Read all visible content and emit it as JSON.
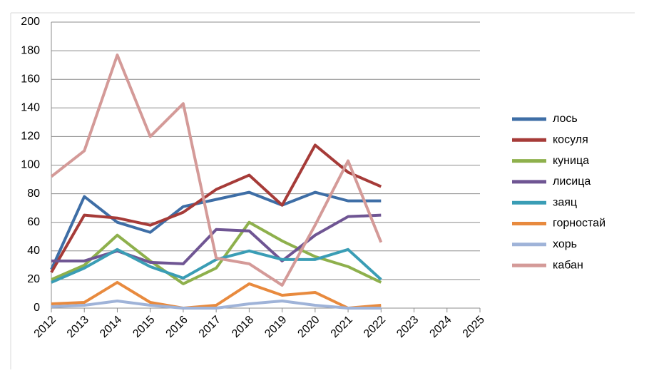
{
  "chart_data": {
    "type": "line",
    "categories": [
      "2012",
      "2013",
      "2014",
      "2015",
      "2016",
      "2017",
      "2018",
      "2019",
      "2020",
      "2021",
      "2022",
      "2023",
      "2024",
      "2025"
    ],
    "series": [
      {
        "name": "лось",
        "color": "#3e6ea6",
        "values": [
          27,
          78,
          60,
          53,
          71,
          76,
          81,
          72,
          81,
          75,
          75,
          null,
          null,
          null
        ]
      },
      {
        "name": "косуля",
        "color": "#a63b38",
        "values": [
          25,
          65,
          63,
          58,
          67,
          83,
          93,
          72,
          114,
          95,
          85,
          null,
          null,
          null
        ]
      },
      {
        "name": "куница",
        "color": "#8eb04c",
        "values": [
          20,
          30,
          51,
          33,
          17,
          28,
          60,
          47,
          36,
          29,
          18,
          null,
          null,
          null
        ]
      },
      {
        "name": "лисица",
        "color": "#6f5593",
        "values": [
          33,
          33,
          40,
          32,
          31,
          55,
          54,
          33,
          51,
          64,
          65,
          null,
          null,
          null
        ]
      },
      {
        "name": "заяц",
        "color": "#3a9db5",
        "values": [
          18,
          28,
          41,
          29,
          21,
          34,
          40,
          34,
          34,
          41,
          20,
          null,
          null,
          null
        ]
      },
      {
        "name": "горностай",
        "color": "#e88a3e",
        "values": [
          3,
          4,
          18,
          4,
          0,
          2,
          17,
          9,
          11,
          0,
          2,
          null,
          null,
          null
        ]
      },
      {
        "name": "хорь",
        "color": "#9fb3d8",
        "values": [
          1,
          2,
          5,
          2,
          0,
          0,
          3,
          5,
          2,
          0,
          0,
          null,
          null,
          null
        ]
      },
      {
        "name": "кабан",
        "color": "#d49a98",
        "values": [
          92,
          110,
          177,
          120,
          143,
          35,
          31,
          16,
          58,
          103,
          46,
          null,
          null,
          null
        ]
      }
    ],
    "ylim": [
      0,
      200
    ],
    "yticks": [
      0,
      20,
      40,
      60,
      80,
      100,
      120,
      140,
      160,
      180,
      200
    ],
    "grid": true,
    "legend": "right"
  }
}
